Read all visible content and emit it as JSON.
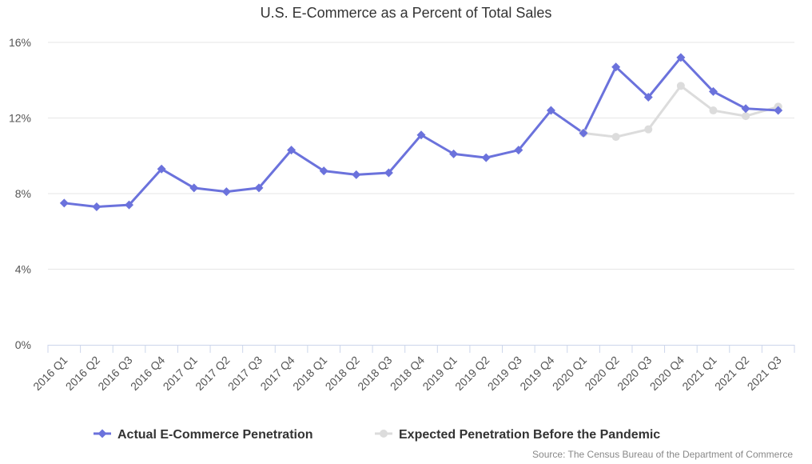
{
  "chart_data": {
    "type": "line",
    "title": "U.S. E-Commerce as a Percent of Total Sales",
    "categories": [
      "2016 Q1",
      "2016 Q2",
      "2016 Q3",
      "2016 Q4",
      "2017 Q1",
      "2017 Q2",
      "2017 Q3",
      "2017 Q4",
      "2018 Q1",
      "2018 Q2",
      "2018 Q3",
      "2018 Q4",
      "2019 Q1",
      "2019 Q2",
      "2019 Q3",
      "2019 Q4",
      "2020 Q1",
      "2020 Q2",
      "2020 Q3",
      "2020 Q4",
      "2021 Q1",
      "2021 Q2",
      "2021 Q3"
    ],
    "yticks": [
      0,
      4,
      8,
      12,
      16
    ],
    "ytick_labels": [
      "0%",
      "4%",
      "8%",
      "12%",
      "16%"
    ],
    "ylim": [
      0,
      16
    ],
    "xlabel": "",
    "ylabel": "",
    "grid": true,
    "legend_position": "bottom-center",
    "series": [
      {
        "name": "Actual E-Commerce Penetration",
        "color": "#6b72dc",
        "marker": "diamond",
        "values": [
          7.5,
          7.3,
          7.4,
          9.3,
          8.3,
          8.1,
          8.3,
          10.3,
          9.2,
          9.0,
          9.1,
          11.1,
          10.1,
          9.9,
          10.3,
          12.4,
          11.2,
          14.7,
          13.1,
          15.2,
          13.4,
          12.5,
          12.4
        ]
      },
      {
        "name": "Expected Penetration Before the Pandemic",
        "color": "#dcdcdc",
        "marker": "circle",
        "values": [
          null,
          null,
          null,
          null,
          null,
          null,
          null,
          null,
          null,
          null,
          null,
          null,
          null,
          null,
          null,
          null,
          11.2,
          11.0,
          11.4,
          13.7,
          12.4,
          12.1,
          12.6
        ]
      }
    ],
    "source": "Source: The Census Bureau of the Department of Commerce"
  }
}
